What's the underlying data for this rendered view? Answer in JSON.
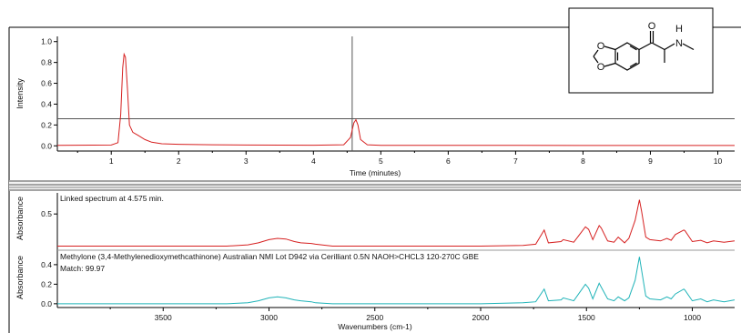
{
  "colors": {
    "chromatogram": "#d62020",
    "sample_spectrum": "#d62020",
    "library_spectrum": "#1fb3b8",
    "marker": "#555555",
    "separator": "#666666"
  },
  "structure": {
    "labels": {
      "carbonyl_o": "O",
      "amine": "N",
      "amine_h": "H",
      "ring_o_top": "O",
      "ring_o_bottom": "O"
    }
  },
  "chart_data": [
    {
      "type": "line",
      "ylabel": "Intensity",
      "xlabel": "Time (minutes)",
      "xlim": [
        0.2,
        10.25
      ],
      "ylim": [
        -0.05,
        1.05
      ],
      "x_ticks": [
        1,
        2,
        3,
        4,
        5,
        6,
        7,
        8,
        9,
        10
      ],
      "y_ticks": [
        0.0,
        0.2,
        0.4,
        0.6,
        0.8,
        1.0
      ],
      "tick_labels_y": [
        "0.0",
        "0.2",
        "0.4",
        "0.6",
        "0.8",
        "1.0"
      ],
      "marker_time": 4.575,
      "threshold": 0.26,
      "grid": false,
      "series": [
        {
          "x": [
            0.2,
            1.0,
            1.1,
            1.14,
            1.17,
            1.19,
            1.21,
            1.24,
            1.27,
            1.32,
            1.4,
            1.5,
            1.6,
            1.75,
            2.0,
            2.5,
            3.0,
            3.5,
            4.0,
            4.45,
            4.55,
            4.6,
            4.63,
            4.66,
            4.7,
            4.8,
            5.0,
            6.0,
            7.0,
            8.0,
            9.0,
            10.25
          ],
          "y": [
            0.005,
            0.008,
            0.03,
            0.3,
            0.75,
            0.88,
            0.85,
            0.55,
            0.2,
            0.13,
            0.1,
            0.06,
            0.035,
            0.02,
            0.015,
            0.01,
            0.008,
            0.007,
            0.006,
            0.01,
            0.08,
            0.22,
            0.25,
            0.2,
            0.06,
            0.01,
            0.005,
            0.004,
            0.004,
            0.003,
            0.003,
            0.003
          ]
        }
      ]
    },
    {
      "type": "line",
      "ylabel": "Absorbance",
      "xlabel": "Wavenumbers (cm-1)",
      "xlim": [
        4000,
        800
      ],
      "x_ticks": [
        3500,
        3000,
        2500,
        2000,
        1500,
        1000
      ],
      "panels": [
        {
          "annotations": [
            "Linked spectrum at 4.575 min."
          ],
          "ylim": [
            -0.05,
            0.8
          ],
          "y_ticks": [
            0.5
          ],
          "tick_labels_y": [
            "0.5"
          ],
          "series": [
            {
              "x": [
                4000,
                3200,
                3100,
                3050,
                3000,
                2960,
                2920,
                2880,
                2850,
                2800,
                2780,
                2700,
                2000,
                1800,
                1740,
                1700,
                1680,
                1620,
                1610,
                1560,
                1505,
                1490,
                1470,
                1440,
                1430,
                1400,
                1370,
                1350,
                1320,
                1300,
                1270,
                1250,
                1240,
                1220,
                1200,
                1150,
                1120,
                1100,
                1080,
                1040,
                1035,
                1000,
                960,
                930,
                900,
                850,
                800
              ],
              "y": [
                0.0,
                0.0,
                0.02,
                0.05,
                0.1,
                0.12,
                0.11,
                0.07,
                0.05,
                0.04,
                0.03,
                0.0,
                0.0,
                0.01,
                0.03,
                0.25,
                0.05,
                0.07,
                0.1,
                0.06,
                0.3,
                0.26,
                0.1,
                0.32,
                0.28,
                0.08,
                0.06,
                0.14,
                0.05,
                0.12,
                0.4,
                0.72,
                0.55,
                0.14,
                0.1,
                0.08,
                0.12,
                0.09,
                0.18,
                0.25,
                0.24,
                0.07,
                0.09,
                0.05,
                0.08,
                0.06,
                0.08
              ]
            }
          ]
        },
        {
          "annotations": [
            "Methylone (3,4-Methylenedioxymethcathinone) Australian NMI Lot D942 via Cerilliant 0.5N NAOH>CHCL3 120-270C  GBE",
            "Match:  99.97"
          ],
          "ylim": [
            -0.02,
            0.52
          ],
          "y_ticks": [
            0.0,
            0.2,
            0.4
          ],
          "tick_labels_y": [
            "0.0",
            "0.2",
            "0.4"
          ],
          "series": [
            {
              "x": [
                4000,
                3200,
                3100,
                3050,
                3000,
                2960,
                2920,
                2880,
                2850,
                2800,
                2780,
                2700,
                2000,
                1800,
                1740,
                1700,
                1680,
                1620,
                1610,
                1560,
                1505,
                1490,
                1470,
                1440,
                1430,
                1400,
                1370,
                1350,
                1320,
                1300,
                1270,
                1250,
                1240,
                1220,
                1200,
                1150,
                1120,
                1100,
                1080,
                1040,
                1035,
                1000,
                960,
                930,
                900,
                850,
                800
              ],
              "y": [
                0.0,
                0.0,
                0.01,
                0.03,
                0.06,
                0.07,
                0.06,
                0.04,
                0.03,
                0.02,
                0.01,
                0.0,
                0.0,
                0.01,
                0.02,
                0.15,
                0.03,
                0.04,
                0.06,
                0.03,
                0.2,
                0.16,
                0.05,
                0.21,
                0.17,
                0.05,
                0.03,
                0.07,
                0.03,
                0.06,
                0.24,
                0.48,
                0.35,
                0.08,
                0.05,
                0.04,
                0.07,
                0.05,
                0.1,
                0.15,
                0.14,
                0.03,
                0.05,
                0.02,
                0.04,
                0.02,
                0.04
              ]
            }
          ]
        }
      ]
    }
  ]
}
